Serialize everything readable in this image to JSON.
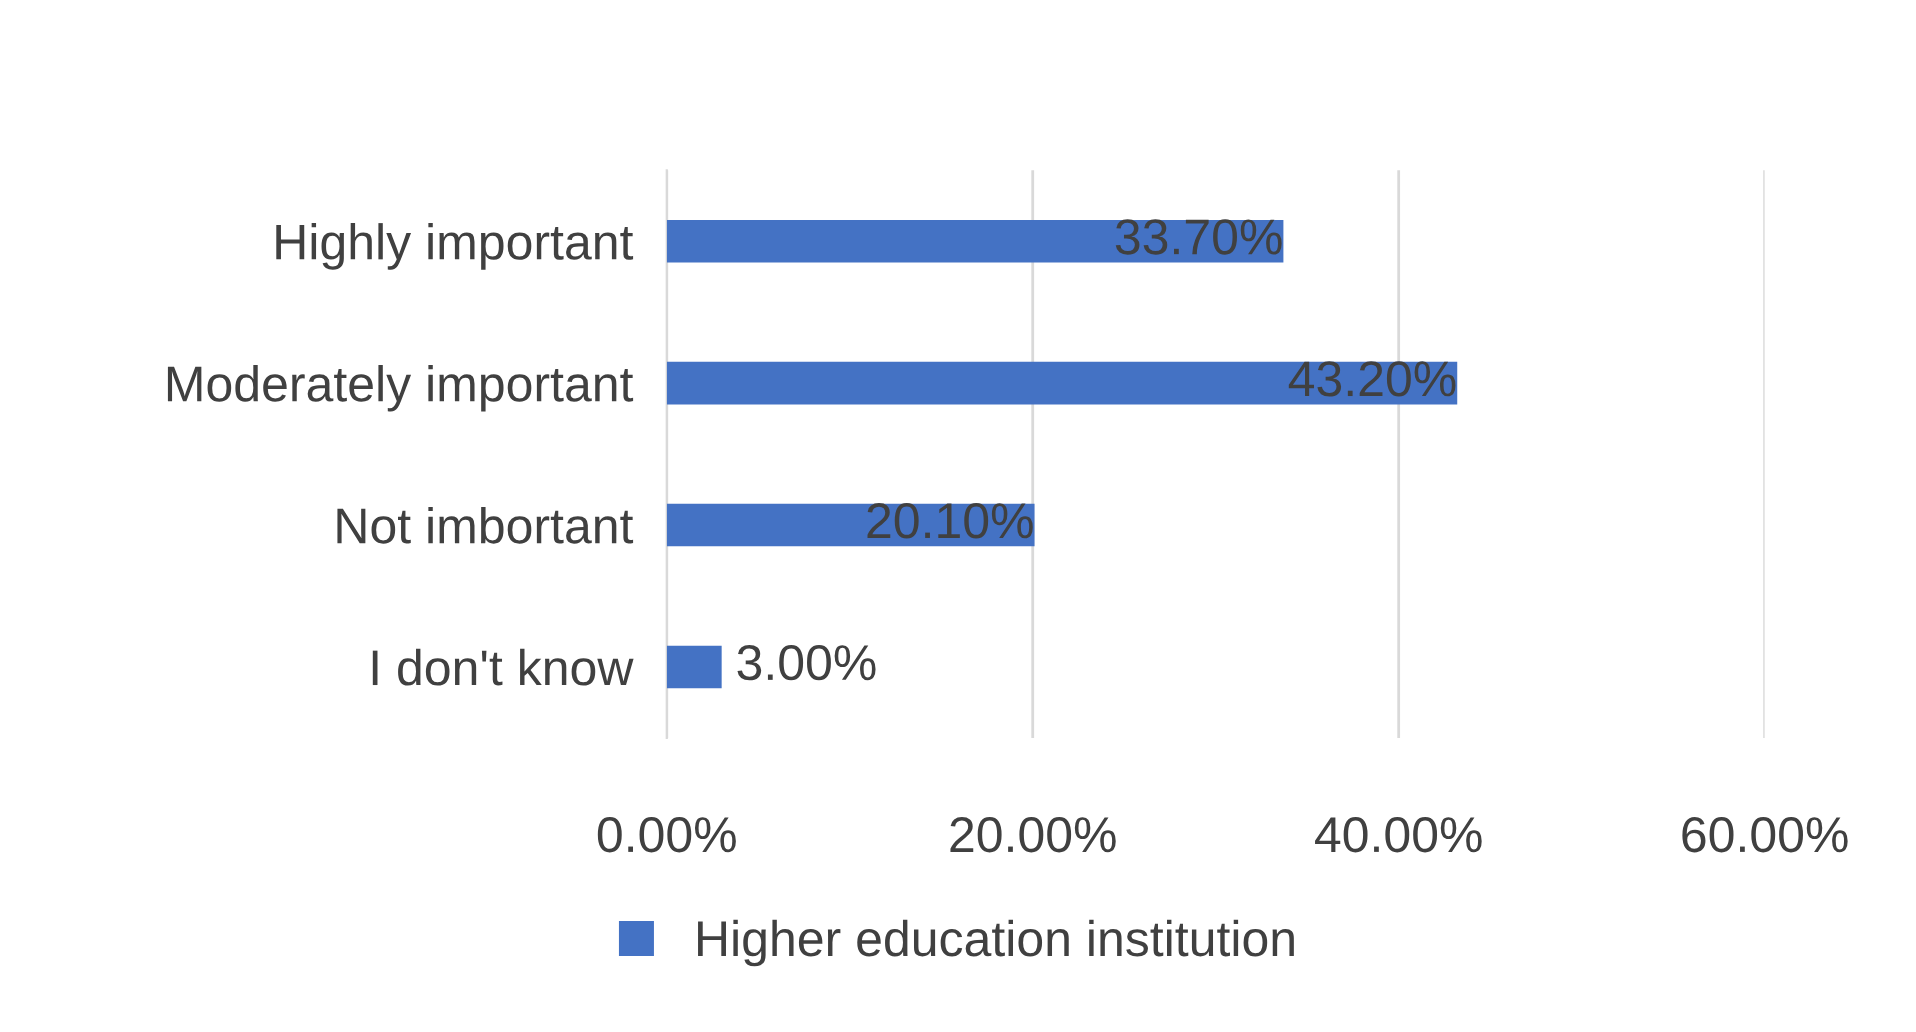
{
  "chart_data": {
    "type": "bar",
    "orientation": "horizontal",
    "categories": [
      "Highly important",
      "Moderately important",
      "Not imbortant",
      "I don't know"
    ],
    "series": [
      {
        "name": "Higher education institution",
        "color": "#4472c4",
        "values": [
          33.7,
          43.2,
          20.1,
          3.0
        ],
        "value_labels": [
          "33.70%",
          "43.20%",
          "20.10%",
          "3.00%"
        ]
      }
    ],
    "xlim": [
      0,
      60
    ],
    "xticks": [
      {
        "value": 0,
        "label": "0.00%"
      },
      {
        "value": 20,
        "label": "20.00%"
      },
      {
        "value": 40,
        "label": "40.00%"
      },
      {
        "value": 60,
        "label": "60.00%"
      }
    ],
    "grid": "x",
    "legend": "bottom"
  }
}
